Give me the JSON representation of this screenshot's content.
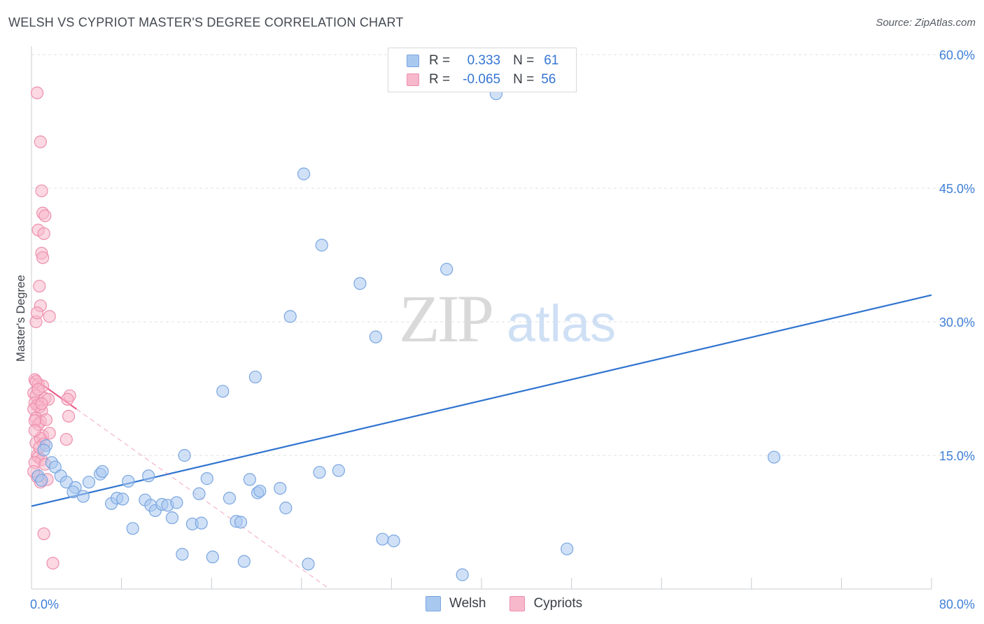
{
  "title": "WELSH VS CYPRIOT MASTER'S DEGREE CORRELATION CHART",
  "source": "Source: ZipAtlas.com",
  "colors": {
    "welsh_fill": "#a9c8f0",
    "welsh_stroke": "#7aa6e0",
    "welsh_line": "#2f74d0",
    "cypriot_fill": "#f7b8cb",
    "cypriot_stroke": "#ee8fad",
    "cypriot_line": "#e8608d",
    "grid": "#dde0e4",
    "tick_label": "#3f7fd8",
    "watermark_zip": "#d9d9d9",
    "watermark_atlas": "#cfe0f5"
  },
  "watermark": {
    "zip": "ZIP",
    "atlas": "atlas"
  },
  "legend": {
    "rows": [
      {
        "r_label": "R =",
        "r_value": "0.333",
        "n_label": "N =",
        "n_value": "61"
      },
      {
        "r_label": "R =",
        "r_value": "-0.065",
        "n_label": "N =",
        "n_value": "56"
      }
    ]
  },
  "bottom_legend": [
    "Welsh",
    "Cypriots"
  ],
  "chart_data": {
    "type": "scatter",
    "title": "WELSH VS CYPRIOT MASTER'S DEGREE CORRELATION CHART",
    "xlabel": "",
    "ylabel": "Master's Degree",
    "xlim": [
      0,
      80
    ],
    "ylim": [
      0,
      60
    ],
    "x_tick_labels": [
      "0.0%",
      "80.0%"
    ],
    "y_ticks": [
      15,
      30,
      45,
      60
    ],
    "y_tick_labels": [
      "15.0%",
      "30.0%",
      "45.0%",
      "60.0%"
    ],
    "legend_position": "top-center",
    "series": [
      {
        "name": "Welsh",
        "R": 0.333,
        "N": 61,
        "trend": {
          "x": [
            0,
            80
          ],
          "y": [
            9.3,
            33.0
          ],
          "style": "solid"
        },
        "points": [
          [
            38.1,
            57.7
          ],
          [
            41.3,
            55.6
          ],
          [
            24.2,
            46.6
          ],
          [
            25.8,
            38.6
          ],
          [
            36.9,
            35.9
          ],
          [
            29.2,
            34.3
          ],
          [
            23.0,
            30.6
          ],
          [
            30.6,
            28.3
          ],
          [
            19.9,
            23.8
          ],
          [
            17.0,
            22.2
          ],
          [
            66.0,
            14.8
          ],
          [
            13.6,
            15.0
          ],
          [
            1.3,
            16.1
          ],
          [
            1.1,
            15.6
          ],
          [
            1.8,
            14.2
          ],
          [
            2.1,
            13.7
          ],
          [
            2.6,
            12.7
          ],
          [
            3.1,
            12.0
          ],
          [
            3.9,
            11.4
          ],
          [
            3.7,
            10.9
          ],
          [
            4.6,
            10.4
          ],
          [
            5.1,
            12.0
          ],
          [
            6.1,
            12.9
          ],
          [
            6.3,
            13.2
          ],
          [
            7.1,
            9.6
          ],
          [
            7.6,
            10.2
          ],
          [
            8.1,
            10.1
          ],
          [
            8.6,
            12.1
          ],
          [
            9.0,
            6.8
          ],
          [
            10.1,
            10.0
          ],
          [
            10.6,
            9.4
          ],
          [
            11.0,
            8.8
          ],
          [
            10.4,
            12.7
          ],
          [
            11.6,
            9.5
          ],
          [
            12.1,
            9.4
          ],
          [
            12.5,
            8.0
          ],
          [
            12.9,
            9.7
          ],
          [
            13.4,
            3.9
          ],
          [
            14.3,
            7.3
          ],
          [
            14.9,
            10.7
          ],
          [
            15.1,
            7.4
          ],
          [
            15.6,
            12.4
          ],
          [
            16.1,
            3.6
          ],
          [
            17.6,
            10.2
          ],
          [
            18.2,
            7.6
          ],
          [
            18.6,
            7.5
          ],
          [
            18.9,
            3.1
          ],
          [
            19.4,
            12.3
          ],
          [
            20.1,
            10.8
          ],
          [
            20.3,
            11.0
          ],
          [
            22.1,
            11.3
          ],
          [
            22.6,
            9.1
          ],
          [
            24.6,
            2.8
          ],
          [
            25.6,
            13.1
          ],
          [
            27.3,
            13.3
          ],
          [
            31.2,
            5.6
          ],
          [
            32.2,
            5.4
          ],
          [
            38.3,
            1.6
          ],
          [
            47.6,
            4.5
          ],
          [
            0.6,
            12.7
          ],
          [
            0.9,
            12.2
          ]
        ]
      },
      {
        "name": "Cypriots",
        "R": -0.065,
        "N": 56,
        "trend": {
          "x": [
            0,
            4.0
          ],
          "y": [
            23.8,
            20.2
          ],
          "style": "solid",
          "extended": {
            "x": [
              4.0,
              26.5
            ],
            "y": [
              20.2,
              0.0
            ],
            "style": "dashed"
          }
        },
        "points": [
          [
            0.5,
            55.7
          ],
          [
            0.8,
            50.2
          ],
          [
            0.9,
            44.7
          ],
          [
            1.0,
            42.2
          ],
          [
            1.2,
            41.9
          ],
          [
            0.6,
            40.3
          ],
          [
            1.1,
            39.9
          ],
          [
            0.9,
            37.7
          ],
          [
            1.0,
            37.2
          ],
          [
            0.7,
            34.0
          ],
          [
            0.8,
            31.8
          ],
          [
            1.6,
            30.6
          ],
          [
            0.4,
            30.0
          ],
          [
            0.5,
            31.0
          ],
          [
            0.3,
            23.5
          ],
          [
            0.6,
            23.0
          ],
          [
            1.0,
            22.8
          ],
          [
            0.2,
            22.0
          ],
          [
            0.4,
            21.7
          ],
          [
            1.2,
            21.4
          ],
          [
            1.5,
            21.3
          ],
          [
            0.3,
            20.9
          ],
          [
            0.5,
            20.6
          ],
          [
            0.7,
            20.4
          ],
          [
            0.2,
            20.2
          ],
          [
            0.9,
            20.0
          ],
          [
            3.4,
            21.7
          ],
          [
            3.2,
            21.3
          ],
          [
            3.3,
            19.4
          ],
          [
            0.4,
            19.2
          ],
          [
            0.8,
            18.8
          ],
          [
            0.6,
            18.5
          ],
          [
            0.3,
            18.9
          ],
          [
            1.0,
            17.2
          ],
          [
            1.6,
            17.5
          ],
          [
            3.1,
            16.8
          ],
          [
            0.4,
            16.4
          ],
          [
            0.8,
            16.9
          ],
          [
            1.1,
            16.3
          ],
          [
            0.5,
            15.0
          ],
          [
            0.6,
            14.8
          ],
          [
            0.9,
            14.5
          ],
          [
            0.3,
            14.2
          ],
          [
            0.5,
            12.6
          ],
          [
            1.4,
            12.3
          ],
          [
            0.8,
            12.0
          ],
          [
            1.1,
            6.2
          ],
          [
            1.9,
            2.9
          ],
          [
            0.2,
            13.2
          ],
          [
            0.7,
            15.9
          ],
          [
            1.3,
            19.0
          ],
          [
            0.4,
            23.3
          ],
          [
            0.9,
            20.8
          ],
          [
            0.6,
            22.4
          ],
          [
            1.2,
            14.0
          ],
          [
            0.3,
            17.8
          ]
        ]
      }
    ]
  }
}
